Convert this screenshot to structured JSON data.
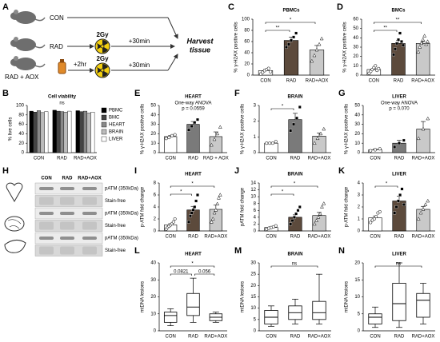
{
  "schematic": {
    "panel": "A",
    "groups": [
      "CON",
      "RAD",
      "RAD + AOX"
    ],
    "dose": [
      "2Gy",
      "2Gy"
    ],
    "delay": [
      "+30min",
      "+30min"
    ],
    "pretreat": "+2hr",
    "endpoint": [
      "Harvest",
      "tissue"
    ]
  },
  "blot": {
    "panel": "H",
    "lanes": [
      "CON",
      "RAD",
      "RAD+AOX"
    ],
    "rows": [
      "pATM (350kDa)",
      "Stain-free",
      "pATM (350kDa)",
      "Stain-free",
      "pATM (350kDa)",
      "Stain-free"
    ]
  },
  "chart_data": [
    {
      "panel": "C",
      "type": "bar",
      "title": "PBMCs",
      "ylabel": "% γ-H2AX positive cells",
      "categories": [
        "CON",
        "RAD",
        "RAD+AOX"
      ],
      "values": [
        8,
        62,
        45
      ],
      "errors": [
        2,
        6,
        8
      ],
      "points": [
        [
          2,
          5,
          8,
          10,
          12,
          6
        ],
        [
          50,
          55,
          62,
          68,
          75
        ],
        [
          25,
          35,
          45,
          55,
          65
        ]
      ],
      "colors": [
        "#ffffff",
        "#5c4a3c",
        "#c9c9c9"
      ],
      "ylim": [
        0,
        100
      ],
      "yticks": [
        0,
        20,
        40,
        60,
        80,
        100
      ],
      "brackets": [
        {
          "label": "**",
          "between": [
            "CON",
            "RAD"
          ]
        },
        {
          "label": "*",
          "between": [
            "CON",
            "RAD+AOX"
          ]
        }
      ]
    },
    {
      "panel": "D",
      "type": "bar",
      "title": "BMCs",
      "ylabel": "% γ-H2AX positive cells",
      "categories": [
        "CON",
        "RAD",
        "RAD+AOX"
      ],
      "values": [
        6,
        34,
        34
      ],
      "errors": [
        1,
        3,
        2
      ],
      "points": [
        [
          2,
          4,
          6,
          8,
          10,
          5,
          7
        ],
        [
          22,
          28,
          34,
          38,
          45,
          36,
          32
        ],
        [
          25,
          30,
          34,
          38,
          42,
          33,
          36
        ]
      ],
      "colors": [
        "#ffffff",
        "#5c4a3c",
        "#c9c9c9"
      ],
      "ylim": [
        0,
        60
      ],
      "yticks": [
        0,
        10,
        20,
        30,
        40,
        50,
        60
      ],
      "brackets": [
        {
          "label": "**",
          "between": [
            "CON",
            "RAD"
          ]
        },
        {
          "label": "**",
          "between": [
            "CON",
            "RAD+AOX"
          ]
        }
      ]
    },
    {
      "panel": "B",
      "type": "grouped_bar",
      "title": "Cell viability",
      "ylabel": "% live cells",
      "categories": [
        "CON",
        "RAD",
        "RAD+AOX"
      ],
      "series": [
        {
          "name": "PBMC",
          "color": "#000000",
          "values": [
            88,
            90,
            89
          ]
        },
        {
          "name": "BMC",
          "color": "#444444",
          "values": [
            86,
            88,
            87
          ]
        },
        {
          "name": "HEART",
          "color": "#888888",
          "values": [
            89,
            87,
            88
          ]
        },
        {
          "name": "BRAIN",
          "color": "#bbbbbb",
          "values": [
            85,
            86,
            84
          ]
        },
        {
          "name": "LIVER",
          "color": "#ffffff",
          "values": [
            87,
            88,
            86
          ]
        }
      ],
      "ylim": [
        0,
        100
      ],
      "yticks": [
        0,
        20,
        40,
        60,
        80,
        100
      ],
      "notes": [
        "ns"
      ]
    },
    {
      "panel": "E",
      "type": "bar",
      "title": "HEART",
      "ylabel": "% γ-H2AX positive cells",
      "categories": [
        "CON",
        "RAD",
        "RAD + AOX"
      ],
      "values": [
        17,
        30,
        17
      ],
      "errors": [
        1,
        3,
        5
      ],
      "points": [
        [
          15,
          16,
          18,
          19
        ],
        [
          24,
          28,
          32,
          35
        ],
        [
          8,
          14,
          20,
          27
        ]
      ],
      "colors": [
        "#ffffff",
        "#7a7a7a",
        "#c9c9c9"
      ],
      "ylim": [
        0,
        50
      ],
      "yticks": [
        0,
        10,
        20,
        30,
        40,
        50
      ],
      "notes": [
        "One-way ANOVA",
        "p = 0.0559"
      ]
    },
    {
      "panel": "F",
      "type": "bar",
      "title": "BRAIN",
      "ylabel": "% γ-H2AX positive cells",
      "categories": [
        "CON",
        "RAD",
        "RAD+AOX"
      ],
      "values": [
        0.6,
        2.1,
        1.05
      ],
      "errors": [
        0.03,
        0.4,
        0.2
      ],
      "points": [
        [
          0.6,
          0.6,
          0.6,
          0.7
        ],
        [
          1.4,
          1.8,
          2.2,
          2.9
        ],
        [
          0.6,
          0.9,
          1.2,
          1.5
        ]
      ],
      "colors": [
        "#ffffff",
        "#7a7a7a",
        "#c9c9c9"
      ],
      "ylim": [
        0,
        3
      ],
      "yticks": [
        0,
        1,
        2,
        3
      ],
      "brackets": [
        {
          "label": "*",
          "between": [
            "CON",
            "RAD"
          ]
        }
      ]
    },
    {
      "panel": "G",
      "type": "bar",
      "title": "LIVER",
      "ylabel": "% γ-H2AX positive cells",
      "categories": [
        "CON",
        "RAD",
        "RAD+AOX"
      ],
      "values": [
        3,
        10,
        25
      ],
      "errors": [
        1,
        3,
        8
      ],
      "points": [
        [
          2,
          3,
          4
        ],
        [
          6,
          10,
          13
        ],
        [
          15,
          25,
          36
        ]
      ],
      "colors": [
        "#ffffff",
        "#7a7a7a",
        "#c9c9c9"
      ],
      "ylim": [
        0,
        50
      ],
      "yticks": [
        0,
        10,
        20,
        30,
        40,
        50
      ],
      "notes": [
        "One-way ANOVA",
        "p = 0.070"
      ]
    },
    {
      "panel": "I",
      "type": "bar",
      "title": "HEART",
      "ylabel": "p-ATM fold change",
      "categories": [
        "CON",
        "RAD",
        "RAD+AOX"
      ],
      "values": [
        1,
        3.5,
        3.6
      ],
      "errors": [
        0.2,
        0.6,
        0.7
      ],
      "points": [
        [
          0.3,
          0.6,
          0.8,
          1,
          1.2,
          1.5,
          2
        ],
        [
          1.5,
          2.5,
          3,
          3.5,
          4,
          5,
          6
        ],
        [
          1.5,
          2,
          3,
          3.5,
          4.5,
          5.5,
          6
        ]
      ],
      "colors": [
        "#ffffff",
        "#5c4a3c",
        "#c9c9c9"
      ],
      "ylim": [
        0,
        8
      ],
      "yticks": [
        0,
        2,
        4,
        6,
        8
      ],
      "brackets": [
        {
          "label": "*",
          "between": [
            "CON",
            "RAD"
          ]
        },
        {
          "label": "*",
          "between": [
            "CON",
            "RAD+AOX"
          ]
        }
      ]
    },
    {
      "panel": "J",
      "type": "bar",
      "title": "BRAIN",
      "ylabel": "pATM fold change",
      "categories": [
        "CON",
        "RAD",
        "RAD+AOX"
      ],
      "values": [
        1,
        4,
        4.5
      ],
      "errors": [
        0.2,
        0.7,
        0.9
      ],
      "points": [
        [
          0.5,
          0.8,
          1,
          1.2,
          1.5
        ],
        [
          2,
          3,
          4,
          5,
          6,
          7
        ],
        [
          2,
          3,
          4,
          5,
          7,
          8
        ]
      ],
      "colors": [
        "#ffffff",
        "#5c4a3c",
        "#c9c9c9"
      ],
      "ylim": [
        0,
        14
      ],
      "yticks": [
        0,
        2,
        4,
        6,
        8,
        10,
        12,
        14
      ],
      "brackets": [
        {
          "label": "*",
          "between": [
            "CON",
            "RAD"
          ]
        },
        {
          "label": "*",
          "between": [
            "CON",
            "RAD+AOX"
          ]
        }
      ]
    },
    {
      "panel": "K",
      "type": "bar",
      "title": "LIVER",
      "ylabel": "p-ATM fold change",
      "categories": [
        "CON",
        "RAD",
        "RAD+AOX"
      ],
      "values": [
        1.1,
        2.5,
        1.8
      ],
      "errors": [
        0.15,
        0.4,
        0.25
      ],
      "points": [
        [
          0.7,
          0.9,
          1,
          1.2,
          1.5,
          1.6
        ],
        [
          1.5,
          2,
          2.5,
          3,
          3.5,
          2.2
        ],
        [
          1,
          1.5,
          1.8,
          2.2,
          2.5
        ]
      ],
      "colors": [
        "#ffffff",
        "#5c4a3c",
        "#c9c9c9"
      ],
      "ylim": [
        0,
        4
      ],
      "yticks": [
        0,
        1,
        2,
        3,
        4
      ],
      "brackets": [
        {
          "label": "*",
          "between": [
            "CON",
            "RAD"
          ]
        }
      ]
    },
    {
      "panel": "L",
      "type": "box",
      "title": "HEART",
      "ylabel": "mtDNA lesions",
      "categories": [
        "CON",
        "RAD",
        "RAD+AOX"
      ],
      "values": [
        [
          3,
          5,
          9,
          11,
          13
        ],
        [
          5,
          9,
          14,
          22,
          31
        ],
        [
          5,
          6,
          8,
          10,
          11
        ]
      ],
      "ylim": [
        0,
        40
      ],
      "yticks": [
        0,
        10,
        20,
        30,
        40
      ],
      "brackets": [
        {
          "label": "0.0821",
          "between": [
            "CON",
            "RAD"
          ]
        },
        {
          "label": "0.056",
          "between": [
            "RAD",
            "RAD+AOX"
          ]
        },
        {
          "label": "*",
          "between": [
            "CON",
            "RAD+AOX"
          ]
        }
      ]
    },
    {
      "panel": "M",
      "type": "box",
      "title": "BRAIN",
      "ylabel": "mtDNA lesions",
      "categories": [
        "CON",
        "RAD",
        "RAD+AOX"
      ],
      "values": [
        [
          2,
          3,
          6,
          9,
          11
        ],
        [
          3,
          5,
          8,
          11,
          14
        ],
        [
          3,
          5,
          8,
          13,
          25
        ]
      ],
      "ylim": [
        0,
        30
      ],
      "yticks": [
        0,
        5,
        10,
        15,
        20,
        25,
        30
      ],
      "brackets": [
        {
          "label": "ns",
          "between": [
            "CON",
            "RAD+AOX"
          ]
        }
      ]
    },
    {
      "panel": "N",
      "type": "box",
      "title": "LIVER",
      "ylabel": "mtDNA lesions",
      "categories": [
        "CON",
        "RAD",
        "RAD+AOX"
      ],
      "values": [
        [
          1,
          2,
          4,
          5,
          7
        ],
        [
          1,
          3,
          8,
          14,
          20
        ],
        [
          2,
          4,
          9,
          11,
          14
        ]
      ],
      "ylim": [
        0,
        20
      ],
      "yticks": [
        0,
        5,
        10,
        15,
        20
      ],
      "brackets": [
        {
          "label": "ns",
          "between": [
            "CON",
            "RAD+AOX"
          ]
        }
      ]
    }
  ]
}
